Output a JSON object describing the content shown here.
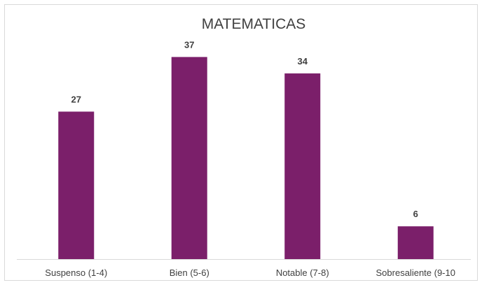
{
  "chart_data": {
    "type": "bar",
    "title": "MATEMATICAS",
    "categories": [
      "Suspenso (1-4)",
      "Bien (5-6)",
      "Notable (7-8)",
      "Sobresaliente (9-10"
    ],
    "values": [
      27,
      37,
      34,
      6
    ],
    "ylim": [
      0,
      40
    ],
    "grid": false,
    "legend": "none",
    "bar_color": "#7b1f6a",
    "axis_color": "#d9d9d9",
    "text_color": "#404040"
  }
}
